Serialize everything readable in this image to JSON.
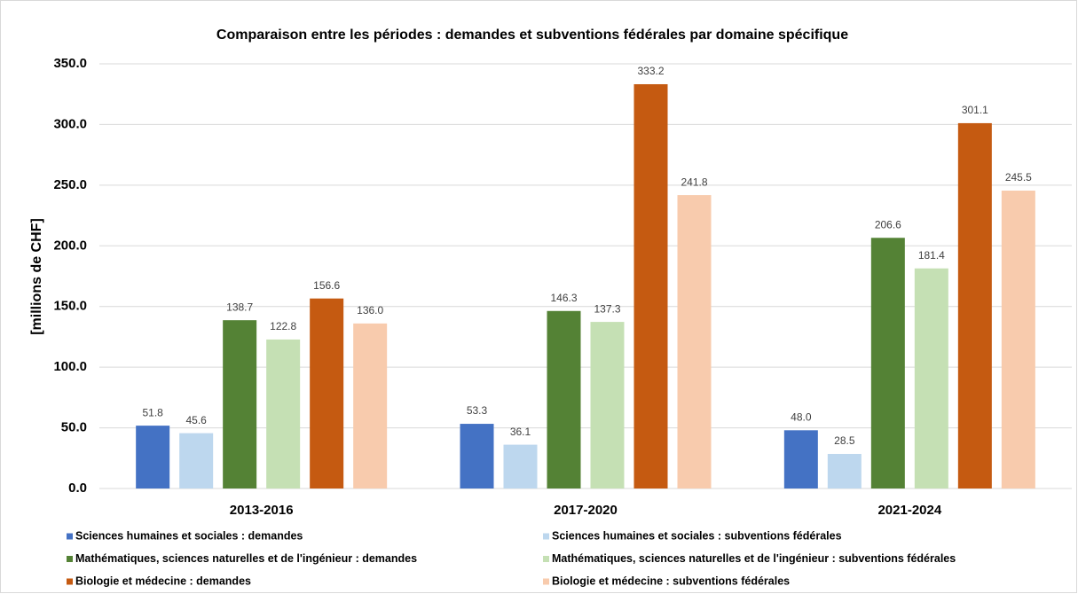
{
  "chart_data": {
    "type": "bar",
    "title": "Comparaison entre les périodes : demandes et subventions fédérales par domaine spécifique",
    "y_label": "[millions de CHF]",
    "categories": [
      "2013-2016",
      "2017-2020",
      "2021-2024"
    ],
    "series": [
      {
        "name": "Sciences humaines et sociales : demandes",
        "color": "#4472c4",
        "values": [
          51.8,
          53.3,
          48.0
        ],
        "value_labels": [
          "51.8",
          "53.3",
          "48.0"
        ]
      },
      {
        "name": "Sciences humaines et sociales : subventions fédérales",
        "color": "#bdd7ee",
        "values": [
          45.6,
          36.1,
          28.5
        ],
        "value_labels": [
          "45.6",
          "36.1",
          "28.5"
        ]
      },
      {
        "name": "Mathématiques, sciences naturelles et de l'ingénieur : demandes",
        "color": "#548235",
        "values": [
          138.7,
          146.3,
          206.6
        ],
        "value_labels": [
          "138.7",
          "146.3",
          "206.6"
        ]
      },
      {
        "name": "Mathématiques, sciences naturelles et de l'ingénieur : subventions fédérales",
        "color": "#c5e0b4",
        "values": [
          122.8,
          137.3,
          181.4
        ],
        "value_labels": [
          "122.8",
          "137.3",
          "181.4"
        ]
      },
      {
        "name": "Biologie et médecine : demandes",
        "color": "#c55a11",
        "values": [
          156.6,
          333.2,
          301.1
        ],
        "value_labels": [
          "156.6",
          "333.2",
          "301.1"
        ]
      },
      {
        "name": "Biologie et médecine : subventions fédérales",
        "color": "#f8cbad",
        "values": [
          136.0,
          241.8,
          245.5
        ],
        "value_labels": [
          "136.0",
          "241.8",
          "245.5"
        ]
      }
    ],
    "ylim": [
      0,
      350
    ],
    "yticks": [
      {
        "value": 0,
        "label": "0.0"
      },
      {
        "value": 50,
        "label": "50.0"
      },
      {
        "value": 100,
        "label": "100.0"
      },
      {
        "value": 150,
        "label": "150.0"
      },
      {
        "value": 200,
        "label": "200.0"
      },
      {
        "value": 250,
        "label": "250.0"
      },
      {
        "value": 300,
        "label": "300.0"
      },
      {
        "value": 350,
        "label": "350.0"
      }
    ],
    "grid": true,
    "legend": "bottom"
  }
}
